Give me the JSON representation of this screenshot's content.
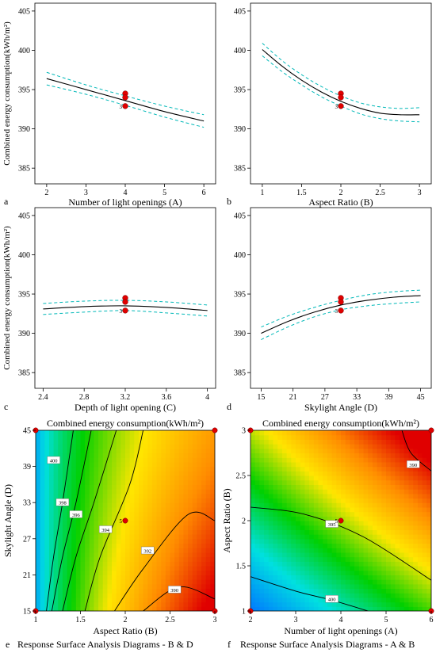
{
  "chart_data": [
    {
      "id": "a",
      "type": "line",
      "panel_letter": "a",
      "xlabel": "Number of light openings (A)",
      "ylabel": "Combined energy consumption(kWh/m²)",
      "xlim": [
        1.7,
        6.3
      ],
      "ylim": [
        383,
        406
      ],
      "xticks": [
        2,
        3,
        4,
        5,
        6
      ],
      "yticks": [
        385,
        390,
        395,
        400,
        405
      ],
      "grid": false,
      "series": [
        {
          "role": "fit",
          "x": [
            2,
            3,
            4,
            5,
            6
          ],
          "y": [
            396.4,
            395.0,
            393.6,
            392.2,
            391.0
          ]
        },
        {
          "role": "upper-ci",
          "x": [
            2,
            3,
            4,
            5,
            6
          ],
          "y": [
            397.2,
            395.6,
            394.2,
            392.9,
            391.8
          ]
        },
        {
          "role": "lower-ci",
          "x": [
            2,
            3,
            4,
            5,
            6
          ],
          "y": [
            395.6,
            394.4,
            393.0,
            391.5,
            390.2
          ]
        }
      ],
      "points": [
        {
          "x": 4,
          "y": 394.5
        },
        {
          "x": 4,
          "y": 394.0
        },
        {
          "x": 4,
          "y": 392.9
        }
      ],
      "point_label": {
        "text": "3",
        "x": 4,
        "y": 392.9
      }
    },
    {
      "id": "b",
      "type": "line",
      "panel_letter": "b",
      "xlabel": "Aspect Ratio (B)",
      "ylabel": "",
      "xlim": [
        0.85,
        3.15
      ],
      "ylim": [
        383,
        406
      ],
      "xticks": [
        1,
        1.5,
        2,
        2.5,
        3
      ],
      "yticks": [
        385,
        390,
        395,
        400,
        405
      ],
      "grid": false,
      "series": [
        {
          "role": "fit",
          "x": [
            1,
            1.25,
            1.5,
            1.75,
            2,
            2.25,
            2.5,
            2.75,
            3
          ],
          "y": [
            400.1,
            398.0,
            396.2,
            394.7,
            393.5,
            392.6,
            392.0,
            391.8,
            391.8
          ]
        },
        {
          "role": "upper-ci",
          "x": [
            1,
            1.25,
            1.5,
            1.75,
            2,
            2.25,
            2.5,
            2.75,
            3
          ],
          "y": [
            400.9,
            398.7,
            396.9,
            395.4,
            394.2,
            393.3,
            392.8,
            392.6,
            392.7
          ]
        },
        {
          "role": "lower-ci",
          "x": [
            1,
            1.25,
            1.5,
            1.75,
            2,
            2.25,
            2.5,
            2.75,
            3
          ],
          "y": [
            399.3,
            397.3,
            395.6,
            394.1,
            392.9,
            391.9,
            391.3,
            391.0,
            390.9
          ]
        }
      ],
      "points": [
        {
          "x": 2,
          "y": 394.5
        },
        {
          "x": 2,
          "y": 394.0
        },
        {
          "x": 2,
          "y": 392.9
        }
      ],
      "point_label": {
        "text": "3",
        "x": 2,
        "y": 392.9
      }
    },
    {
      "id": "c",
      "type": "line",
      "panel_letter": "c",
      "xlabel": "Depth of light opening (C)",
      "ylabel": "Combined energy consumption(kWh/m²)",
      "xlim": [
        2.32,
        4.08
      ],
      "ylim": [
        383,
        406
      ],
      "xticks": [
        2.4,
        2.8,
        3.2,
        3.6,
        4
      ],
      "yticks": [
        385,
        390,
        395,
        400,
        405
      ],
      "grid": false,
      "series": [
        {
          "role": "fit",
          "x": [
            2.4,
            2.8,
            3.2,
            3.6,
            4.0
          ],
          "y": [
            393.1,
            393.4,
            393.5,
            393.3,
            392.9
          ]
        },
        {
          "role": "upper-ci",
          "x": [
            2.4,
            2.8,
            3.2,
            3.6,
            4.0
          ],
          "y": [
            393.8,
            394.1,
            394.2,
            394.0,
            393.6
          ]
        },
        {
          "role": "lower-ci",
          "x": [
            2.4,
            2.8,
            3.2,
            3.6,
            4.0
          ],
          "y": [
            392.4,
            392.7,
            392.9,
            392.6,
            392.2
          ]
        }
      ],
      "points": [
        {
          "x": 3.2,
          "y": 394.5
        },
        {
          "x": 3.2,
          "y": 394.0
        },
        {
          "x": 3.2,
          "y": 392.9
        }
      ],
      "point_label": {
        "text": "3",
        "x": 3.2,
        "y": 392.9
      }
    },
    {
      "id": "d",
      "type": "line",
      "panel_letter": "d",
      "xlabel": "Skylight Angle (D)",
      "ylabel": "",
      "xlim": [
        13,
        47
      ],
      "ylim": [
        383,
        406
      ],
      "xticks": [
        15,
        21,
        27,
        33,
        39,
        45
      ],
      "yticks": [
        385,
        390,
        395,
        400,
        405
      ],
      "grid": false,
      "series": [
        {
          "role": "fit",
          "x": [
            15,
            20,
            25,
            30,
            35,
            40,
            45
          ],
          "y": [
            390.0,
            391.5,
            392.7,
            393.6,
            394.2,
            394.6,
            394.8
          ]
        },
        {
          "role": "upper-ci",
          "x": [
            15,
            20,
            25,
            30,
            35,
            40,
            45
          ],
          "y": [
            390.8,
            392.2,
            393.3,
            394.2,
            394.9,
            395.3,
            395.5
          ]
        },
        {
          "role": "lower-ci",
          "x": [
            15,
            20,
            25,
            30,
            35,
            40,
            45
          ],
          "y": [
            389.2,
            390.8,
            392.1,
            393.0,
            393.5,
            393.8,
            394.0
          ]
        }
      ],
      "points": [
        {
          "x": 30,
          "y": 394.5
        },
        {
          "x": 30,
          "y": 394.0
        },
        {
          "x": 30,
          "y": 392.9
        }
      ],
      "point_label": {
        "text": "3",
        "x": 30,
        "y": 392.9
      }
    },
    {
      "id": "e",
      "type": "heatmap",
      "panel_letter": "e",
      "title": "Combined energy consumption(kWh/m²)",
      "caption": "Response Surface Analysis Diagrams - B & D",
      "xlabel": "Aspect Ratio (B)",
      "ylabel": "Skylight Angle (D)",
      "xlim": [
        1,
        3
      ],
      "ylim": [
        15,
        45
      ],
      "xticks": [
        1,
        1.5,
        2,
        2.5,
        3
      ],
      "yticks": [
        15,
        21,
        27,
        33,
        39,
        45
      ],
      "colormap": [
        "#e00000",
        "#ff8c00",
        "#ffe600",
        "#00d000",
        "#00e0e0",
        "#0078ff"
      ],
      "contours": [
        {
          "label": "400",
          "points": [
            [
              1.12,
              15
            ],
            [
              1.2,
              24
            ],
            [
              1.3,
              33
            ],
            [
              1.42,
              45
            ]
          ],
          "label_at": [
            1.2,
            40
          ]
        },
        {
          "label": "398",
          "points": [
            [
              1.18,
              15
            ],
            [
              1.3,
              24
            ],
            [
              1.45,
              33
            ],
            [
              1.62,
              45
            ]
          ],
          "label_at": [
            1.3,
            33
          ]
        },
        {
          "label": "396",
          "points": [
            [
              1.3,
              15
            ],
            [
              1.45,
              24
            ],
            [
              1.65,
              33
            ],
            [
              1.9,
              45
            ]
          ],
          "label_at": [
            1.45,
            31
          ]
        },
        {
          "label": "394",
          "points": [
            [
              1.55,
              15
            ],
            [
              1.72,
              24
            ],
            [
              2.05,
              36
            ],
            [
              2.2,
              45
            ]
          ],
          "label_at": [
            1.78,
            28.5
          ]
        },
        {
          "label": "392",
          "points": [
            [
              1.88,
              15
            ],
            [
              2.2,
              22
            ],
            [
              2.7,
              31
            ],
            [
              3,
              30
            ]
          ],
          "label_at": [
            2.25,
            25
          ]
        },
        {
          "label": "390",
          "points": [
            [
              2.2,
              15
            ],
            [
              2.6,
              19
            ],
            [
              3,
              17
            ]
          ],
          "label_at": [
            2.55,
            18.5
          ]
        }
      ],
      "points": [
        {
          "x": 1,
          "y": 15
        },
        {
          "x": 1,
          "y": 45
        },
        {
          "x": 3,
          "y": 15
        },
        {
          "x": 3,
          "y": 45
        },
        {
          "x": 2,
          "y": 30
        }
      ],
      "point_label": {
        "text": "5",
        "x": 2,
        "y": 30
      }
    },
    {
      "id": "f",
      "type": "heatmap",
      "panel_letter": "f",
      "title": "Combined energy consumption(kWh/m²)",
      "caption": "Response Surface Analysis Diagrams - A & B",
      "xlabel": "Number of light openings (A)",
      "ylabel": "Aspect Ratio (B)",
      "xlim": [
        2,
        6
      ],
      "ylim": [
        1,
        3
      ],
      "xticks": [
        2,
        3,
        4,
        5,
        6
      ],
      "yticks": [
        1,
        1.5,
        2,
        2.5,
        3
      ],
      "colormap": [
        "#e00000",
        "#ff8c00",
        "#ffe600",
        "#00d000",
        "#00e0e0",
        "#0078ff"
      ],
      "contours": [
        {
          "label": "400",
          "points": [
            [
              2,
              1.38
            ],
            [
              3,
              1.22
            ],
            [
              3.8,
              1.12
            ],
            [
              4.6,
              1.0
            ]
          ],
          "label_at": [
            3.8,
            1.13
          ]
        },
        {
          "label": "395",
          "points": [
            [
              2,
              2.15
            ],
            [
              3.2,
              2.07
            ],
            [
              4.5,
              1.82
            ],
            [
              6,
              1.34
            ]
          ],
          "label_at": [
            3.8,
            1.96
          ]
        },
        {
          "label": "390",
          "points": [
            [
              5.35,
              3
            ],
            [
              5.55,
              2.75
            ],
            [
              6,
              2.55
            ]
          ],
          "label_at": [
            5.6,
            2.62
          ]
        }
      ],
      "points": [
        {
          "x": 2,
          "y": 1
        },
        {
          "x": 2,
          "y": 3
        },
        {
          "x": 6,
          "y": 1
        },
        {
          "x": 6,
          "y": 3
        },
        {
          "x": 4,
          "y": 2
        }
      ],
      "point_label": {
        "text": "5",
        "x": 4,
        "y": 2
      }
    }
  ],
  "colors": {
    "fit_line": "#000000",
    "ci_line": "#00b8b8",
    "design_point": "#e00000",
    "contour_line": "#000000"
  }
}
